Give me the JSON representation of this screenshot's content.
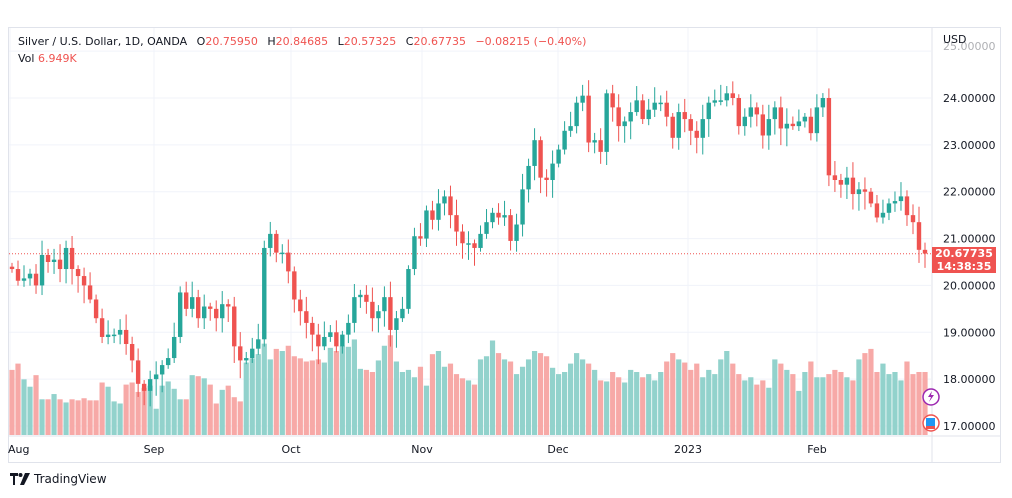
{
  "header": {
    "symbol": "Silver / U.S. Dollar, 1D, OANDA",
    "open_label": "O",
    "open": "20.75950",
    "high_label": "H",
    "high": "20.84685",
    "low_label": "L",
    "low": "20.57325",
    "close_label": "C",
    "close": "20.67735",
    "change": "−0.08215 (−0.40%)",
    "vol_label": "Vol",
    "vol": "6.949K"
  },
  "price_axis": {
    "currency": "USD",
    "ticks": [
      "25.00000",
      "24.00000",
      "23.00000",
      "22.00000",
      "21.00000",
      "20.00000",
      "19.00000",
      "18.00000",
      "17.00000"
    ],
    "last_price": "20.67735",
    "countdown": "14:38:35"
  },
  "time_axis": {
    "ticks": [
      "Aug",
      "Sep",
      "Oct",
      "Nov",
      "Dec",
      "2023",
      "Feb"
    ]
  },
  "branding": {
    "name": "TradingView"
  },
  "colors": {
    "up": "#26a69a",
    "down": "#ef5350",
    "up_vol": "#92d2cc",
    "down_vol": "#f7a9a7",
    "grid": "#f0f3fa"
  },
  "chart_data": {
    "type": "candlestick",
    "title": "Silver / U.S. Dollar, 1D, OANDA",
    "ylabel": "USD",
    "ylim": [
      17.0,
      25.0
    ],
    "x_ticks": [
      "Aug",
      "Sep",
      "Oct",
      "Nov",
      "Dec",
      "2023",
      "Feb"
    ],
    "last_price": 20.67735,
    "keyframes_close": [
      20.35,
      20.1,
      20.15,
      20.25,
      20.0,
      20.65,
      20.5,
      20.55,
      20.35,
      20.8,
      20.35,
      20.2,
      20.0,
      19.7,
      19.3,
      18.9,
      18.95,
      18.95,
      19.05,
      18.75,
      18.4,
      17.9,
      17.75,
      18.0,
      18.1,
      18.3,
      18.45,
      18.9,
      19.85,
      19.5,
      19.75,
      19.3,
      19.55,
      19.5,
      19.3,
      19.6,
      19.55,
      18.7,
      18.4,
      18.45,
      18.65,
      18.85,
      20.8,
      21.1,
      20.7,
      20.7,
      20.3,
      19.7,
      19.45,
      19.2,
      18.95,
      18.7,
      18.9,
      19.0,
      18.7,
      18.95,
      19.2,
      19.75,
      19.8,
      19.65,
      19.3,
      19.45,
      19.75,
      19.05,
      19.3,
      19.5,
      20.35,
      21.05,
      21.0,
      21.6,
      21.4,
      21.75,
      21.9,
      21.5,
      21.15,
      20.9,
      20.9,
      20.8,
      21.1,
      21.35,
      21.55,
      21.45,
      21.5,
      20.95,
      21.3,
      22.05,
      22.55,
      23.1,
      22.3,
      22.25,
      22.6,
      22.9,
      23.3,
      23.4,
      23.9,
      24.05,
      23.05,
      23.1,
      22.85,
      24.1,
      23.8,
      23.4,
      23.5,
      23.7,
      23.95,
      23.55,
      23.75,
      23.9,
      23.9,
      23.6,
      23.15,
      23.7,
      23.55,
      23.3,
      23.15,
      23.55,
      23.9,
      23.95,
      23.95,
      24.1,
      24.0,
      23.4,
      23.6,
      23.8,
      23.65,
      23.2,
      23.55,
      23.8,
      23.35,
      23.45,
      23.4,
      23.5,
      23.6,
      23.25,
      23.8,
      24.0,
      22.35,
      22.25,
      22.15,
      22.3,
      21.95,
      22.05,
      22.0,
      21.75,
      21.45,
      21.55,
      21.75,
      21.8,
      21.9,
      21.5,
      21.35,
      20.76,
      20.68
    ],
    "volume_relative": [
      0.62,
      0.68,
      0.53,
      0.46,
      0.57,
      0.34,
      0.34,
      0.39,
      0.34,
      0.31,
      0.34,
      0.33,
      0.35,
      0.33,
      0.33,
      0.5,
      0.46,
      0.32,
      0.3,
      0.48,
      0.5,
      0.41,
      0.45,
      0.47,
      0.25,
      0.47,
      0.51,
      0.44,
      0.34,
      0.34,
      0.57,
      0.56,
      0.54,
      0.48,
      0.3,
      0.43,
      0.47,
      0.36,
      0.32,
      0.69,
      0.73,
      0.77,
      0.87,
      0.72,
      0.82,
      0.8,
      0.85,
      0.75,
      0.73,
      0.7,
      0.71,
      0.72,
      0.69,
      0.83,
      0.8,
      0.85,
      0.84,
      0.91,
      0.63,
      0.62,
      0.6,
      0.71,
      0.85,
      0.95,
      0.7,
      0.6,
      0.62,
      0.55,
      0.65,
      0.47,
      0.77,
      0.8,
      0.65,
      0.68,
      0.58,
      0.54,
      0.52,
      0.48,
      0.72,
      0.75,
      0.9,
      0.78,
      0.72,
      0.7,
      0.58,
      0.65,
      0.72,
      0.8,
      0.78,
      0.75,
      0.64,
      0.58,
      0.6,
      0.68,
      0.78,
      0.72,
      0.68,
      0.62,
      0.52,
      0.51,
      0.6,
      0.55,
      0.5,
      0.62,
      0.6,
      0.55,
      0.58,
      0.52,
      0.6,
      0.7,
      0.78,
      0.72,
      0.69,
      0.62,
      0.68,
      0.55,
      0.62,
      0.58,
      0.72,
      0.8,
      0.68,
      0.58,
      0.52,
      0.55,
      0.48,
      0.52,
      0.45,
      0.72,
      0.68,
      0.62,
      0.58,
      0.42,
      0.6,
      0.7,
      0.55,
      0.55,
      0.58,
      0.62,
      0.6,
      0.55,
      0.52,
      0.72,
      0.78,
      0.82,
      0.6,
      0.68,
      0.58,
      0.6,
      0.52,
      0.7,
      0.58,
      0.6,
      0.6,
      0.45,
      0.58,
      0.56,
      0.5,
      0.42
    ],
    "volume_axis_note": "volume plotted as overlay in bottom pane"
  }
}
